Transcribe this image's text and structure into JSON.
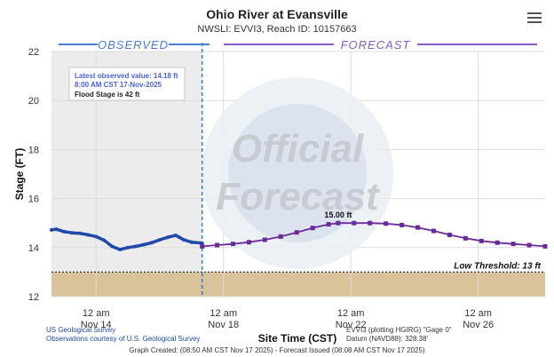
{
  "title": "Ohio River at Evansville",
  "subtitle": "NWSLI: EVVI3, Reach ID: 10157663",
  "icons": {
    "menu": "hamburger-menu-icon"
  },
  "colors": {
    "observed": "#2048a8",
    "forecast": "#6a2a9a",
    "observed_bg": "#ececec",
    "low_band": "#d8c39a",
    "observed_header": "#4a7dd6",
    "forecast_header": "#8a5bc4"
  },
  "chart_data": {
    "type": "line",
    "xlabel": "Site Time (CST)",
    "ylabel": "Stage (FT)",
    "ylim": [
      12,
      22
    ],
    "yticks": [
      "12",
      "14",
      "16",
      "18",
      "20",
      "22"
    ],
    "x_ticks": [
      {
        "day": 14,
        "line1": "12 am",
        "line2": "Nov 14"
      },
      {
        "day": 18,
        "line1": "12 am",
        "line2": "Nov 18"
      },
      {
        "day": 22,
        "line1": "12 am",
        "line2": "Nov 22"
      },
      {
        "day": 26,
        "line1": "12 am",
        "line2": "Nov 26"
      }
    ],
    "x_unit": "days of November 2025 (CST)",
    "xlim": [
      12.6,
      28.1
    ],
    "now_day": 17.33,
    "observed_label": "OBSERVED",
    "forecast_label": "FORECAST",
    "watermark": [
      "Official",
      "Forecast"
    ],
    "legend_box": {
      "latest_label": "Latest observed value: 14.18 ft",
      "latest_time": "8:00 AM CST 17-Nov-2025",
      "flood_stage": "Flood Stage is 42 ft"
    },
    "peak_label": "15.00 ft",
    "peak_point": {
      "day": 21.6,
      "value": 15.0
    },
    "threshold": {
      "label": "Low Threshold: 13 ft",
      "value": 13
    },
    "observed": [
      {
        "day": 12.6,
        "value": 14.72
      },
      {
        "day": 12.75,
        "value": 14.75
      },
      {
        "day": 13.0,
        "value": 14.65
      },
      {
        "day": 13.25,
        "value": 14.6
      },
      {
        "day": 13.5,
        "value": 14.58
      },
      {
        "day": 13.75,
        "value": 14.52
      },
      {
        "day": 14.0,
        "value": 14.45
      },
      {
        "day": 14.25,
        "value": 14.3
      },
      {
        "day": 14.5,
        "value": 14.05
      },
      {
        "day": 14.75,
        "value": 13.92
      },
      {
        "day": 15.0,
        "value": 14.0
      },
      {
        "day": 15.25,
        "value": 14.05
      },
      {
        "day": 15.5,
        "value": 14.12
      },
      {
        "day": 15.75,
        "value": 14.2
      },
      {
        "day": 16.0,
        "value": 14.32
      },
      {
        "day": 16.25,
        "value": 14.42
      },
      {
        "day": 16.5,
        "value": 14.5
      },
      {
        "day": 16.6,
        "value": 14.43
      },
      {
        "day": 16.75,
        "value": 14.32
      },
      {
        "day": 17.0,
        "value": 14.22
      },
      {
        "day": 17.33,
        "value": 14.18
      }
    ],
    "forecast": [
      {
        "day": 17.33,
        "value": 14.05
      },
      {
        "day": 17.8,
        "value": 14.1
      },
      {
        "day": 18.3,
        "value": 14.15
      },
      {
        "day": 18.8,
        "value": 14.22
      },
      {
        "day": 19.3,
        "value": 14.32
      },
      {
        "day": 19.8,
        "value": 14.45
      },
      {
        "day": 20.3,
        "value": 14.62
      },
      {
        "day": 20.8,
        "value": 14.8
      },
      {
        "day": 21.3,
        "value": 14.95
      },
      {
        "day": 21.6,
        "value": 15.0
      },
      {
        "day": 22.1,
        "value": 15.0
      },
      {
        "day": 22.6,
        "value": 15.0
      },
      {
        "day": 23.1,
        "value": 14.98
      },
      {
        "day": 23.6,
        "value": 14.92
      },
      {
        "day": 24.1,
        "value": 14.82
      },
      {
        "day": 24.6,
        "value": 14.68
      },
      {
        "day": 25.1,
        "value": 14.52
      },
      {
        "day": 25.6,
        "value": 14.38
      },
      {
        "day": 26.1,
        "value": 14.27
      },
      {
        "day": 26.6,
        "value": 14.2
      },
      {
        "day": 27.1,
        "value": 14.15
      },
      {
        "day": 27.6,
        "value": 14.1
      },
      {
        "day": 28.1,
        "value": 14.05
      }
    ]
  },
  "footer": {
    "credit1": "US Geological Survey",
    "credit2": "Observations courtesy of U.S. Geological Survey",
    "gage1": "EVVI3 (plotting HGIRG) \"Gage 0\"",
    "gage2": "Datum (NAVD88): 328.38'",
    "created": "Graph Created: (08:50 AM CST Nov 17 2025) - Forecast Issued (08:08 AM CST Nov 17 2025)"
  }
}
